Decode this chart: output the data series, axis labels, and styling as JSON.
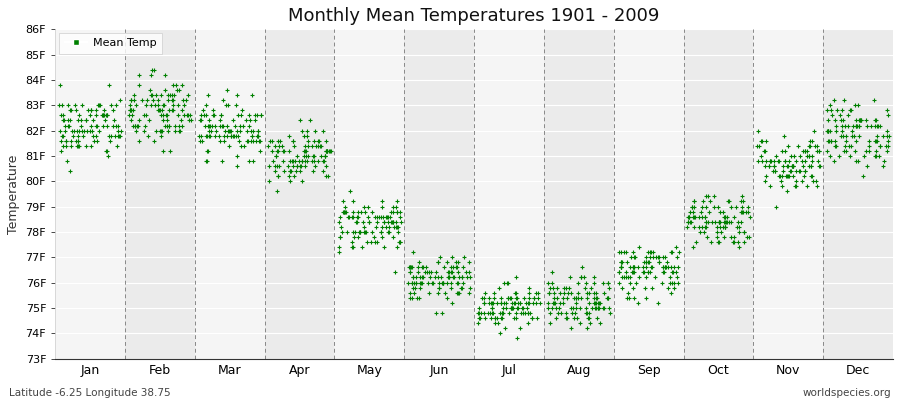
{
  "title": "Monthly Mean Temperatures 1901 - 2009",
  "ylabel": "Temperature",
  "subtitle_left": "Latitude -6.25 Longitude 38.75",
  "subtitle_right": "worldspecies.org",
  "ylim_min": 73,
  "ylim_max": 86,
  "months": [
    "Jan",
    "Feb",
    "Mar",
    "Apr",
    "May",
    "Jun",
    "Jul",
    "Aug",
    "Sep",
    "Oct",
    "Nov",
    "Dec"
  ],
  "mean_temps": [
    82.1,
    82.7,
    82.1,
    81.05,
    78.3,
    76.1,
    75.1,
    75.2,
    76.5,
    78.5,
    80.7,
    81.9
  ],
  "std_temps": [
    0.65,
    0.75,
    0.55,
    0.55,
    0.55,
    0.45,
    0.45,
    0.5,
    0.55,
    0.55,
    0.6,
    0.65
  ],
  "n_years": 109,
  "dot_color": "#008000",
  "dot_size": 6,
  "bg_color_odd": "#ebebeb",
  "bg_color_even": "#f5f5f5",
  "legend_label": "Mean Temp",
  "vline_color": "#888888",
  "hgrid_color": "#ffffff",
  "legend_marker": "s"
}
